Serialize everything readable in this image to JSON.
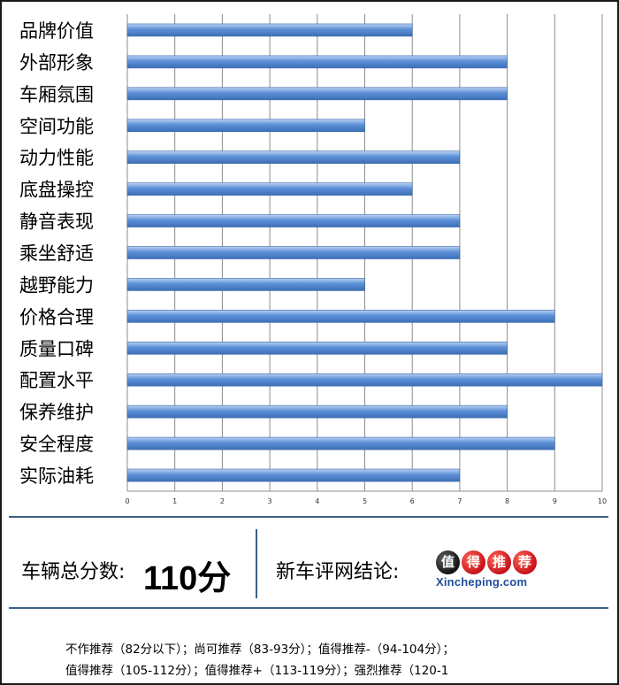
{
  "chart_data": {
    "type": "bar",
    "orientation": "horizontal",
    "categories": [
      "品牌价值",
      "外部形象",
      "车厢氛围",
      "空间功能",
      "动力性能",
      "底盘操控",
      "静音表现",
      "乘坐舒适",
      "越野能力",
      "价格合理",
      "质量口碑",
      "配置水平",
      "保养维护",
      "安全程度",
      "实际油耗"
    ],
    "values": [
      6,
      8,
      8,
      5,
      7,
      6,
      7,
      7,
      5,
      9,
      8,
      10,
      8,
      9,
      7
    ],
    "xlim": [
      0,
      10
    ],
    "xticks": [
      "0",
      "1",
      "2",
      "3",
      "4",
      "5",
      "6",
      "7",
      "8",
      "9",
      "10"
    ],
    "grid": true,
    "bar_color": "#5b8fd6"
  },
  "summary": {
    "total_label": "车辆总分数:",
    "total_score": "110分",
    "conclusion_label": "新车评网结论:"
  },
  "logo": {
    "chars": [
      "值",
      "得",
      "推",
      "荐"
    ],
    "site": "Xincheping.com"
  },
  "footer": {
    "line1": "不作推荐（82分以下）；尚可推荐（83-93分）；值得推荐-（94-104分）；",
    "line2": "值得推荐（105-112分）；值得推荐+（113-119分）；强烈推荐（120-1"
  }
}
